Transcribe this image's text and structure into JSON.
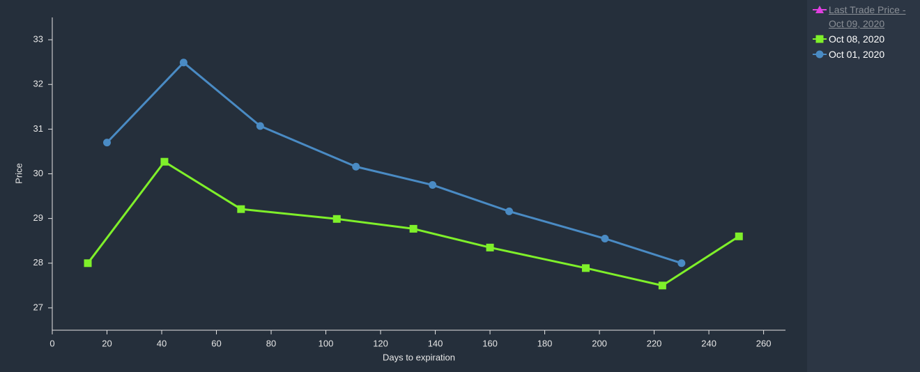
{
  "chart_data": {
    "type": "line",
    "x_label": "Days to expiration",
    "y_label": "Price",
    "xlim": [
      0,
      268
    ],
    "xticks": [
      0,
      20,
      40,
      60,
      80,
      100,
      120,
      140,
      160,
      180,
      200,
      220,
      240,
      260
    ],
    "ylim": [
      26.5,
      33.5
    ],
    "yticks": [
      27,
      28,
      29,
      30,
      31,
      32,
      33
    ],
    "grid": false,
    "legend": "right",
    "series": [
      {
        "name": "Last Trade Price - Oct 09, 2020",
        "color": "#e040e0",
        "marker": "triangle",
        "hidden": true,
        "x": [],
        "values": []
      },
      {
        "name": "Oct 08, 2020",
        "color": "#7ff02a",
        "marker": "square",
        "hidden": false,
        "x": [
          13,
          41,
          69,
          104,
          132,
          160,
          195,
          223,
          251
        ],
        "values": [
          28.0,
          30.27,
          29.21,
          28.99,
          28.77,
          28.35,
          27.89,
          27.5,
          28.6
        ]
      },
      {
        "name": "Oct 01, 2020",
        "color": "#4a8bc4",
        "marker": "circle",
        "hidden": false,
        "x": [
          20,
          48,
          76,
          111,
          139,
          167,
          202,
          230
        ],
        "values": [
          30.7,
          32.49,
          31.07,
          30.16,
          29.75,
          29.16,
          28.55,
          28.0
        ]
      }
    ]
  }
}
